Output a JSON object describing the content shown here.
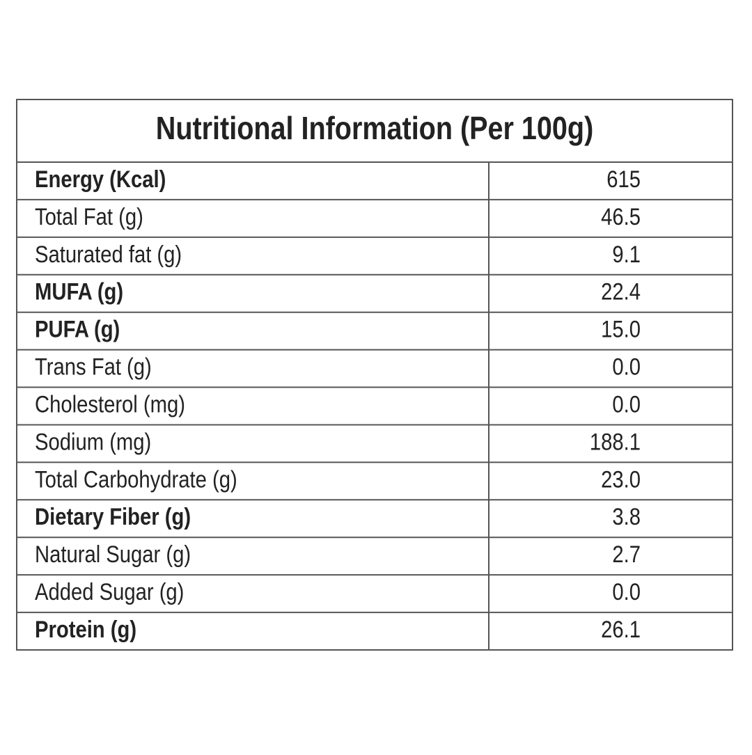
{
  "table": {
    "title": "Nutritional Information (Per 100g)",
    "rows": [
      {
        "label": "Energy (Kcal)",
        "value": "615",
        "bold": true
      },
      {
        "label": "Total Fat (g)",
        "value": "46.5",
        "bold": false
      },
      {
        "label": "Saturated fat (g)",
        "value": "9.1",
        "bold": false
      },
      {
        "label": "MUFA (g)",
        "value": "22.4",
        "bold": true
      },
      {
        "label": "PUFA (g)",
        "value": "15.0",
        "bold": true
      },
      {
        "label": "Trans Fat (g)",
        "value": "0.0",
        "bold": false
      },
      {
        "label": "Cholesterol (mg)",
        "value": "0.0",
        "bold": false
      },
      {
        "label": "Sodium (mg)",
        "value": "188.1",
        "bold": false
      },
      {
        "label": "Total Carbohydrate (g)",
        "value": "23.0",
        "bold": false
      },
      {
        "label": "Dietary Fiber (g)",
        "value": "3.8",
        "bold": true
      },
      {
        "label": "Natural Sugar (g)",
        "value": "2.7",
        "bold": false
      },
      {
        "label": "Added Sugar (g)",
        "value": "0.0",
        "bold": false
      },
      {
        "label": "Protein (g)",
        "value": "26.1",
        "bold": true
      }
    ]
  }
}
